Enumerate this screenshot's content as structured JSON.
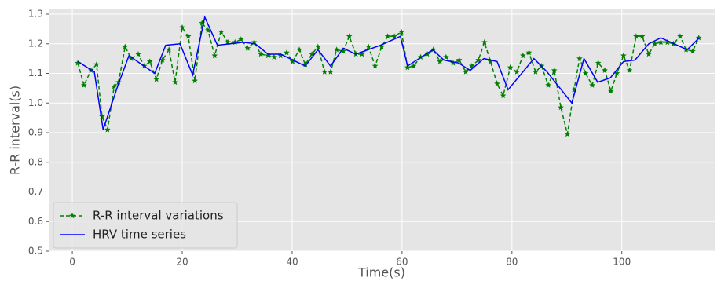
{
  "chart_data": {
    "type": "line",
    "xlabel": "Time(s)",
    "ylabel": "R-R interval(s)",
    "xlim": [
      -4.3,
      116.9
    ],
    "ylim": [
      0.5,
      1.3
    ],
    "xticks": [
      0,
      20,
      40,
      60,
      80,
      100
    ],
    "yticks": [
      0.5,
      0.6,
      0.7,
      0.8,
      0.9,
      {
        "value": 1.0,
        "label": "1.0"
      },
      1.1,
      1.2,
      1.3
    ],
    "grid": true,
    "legend": "lower left",
    "series": [
      {
        "name": "R-R interval variations",
        "color": "#008000",
        "line_style": "dashed",
        "marker": "star",
        "x": [
          1.0,
          2.1,
          3.4,
          4.4,
          5.4,
          6.4,
          7.6,
          8.4,
          9.6,
          10.7,
          12,
          13.1,
          14.1,
          15.3,
          16.4,
          17.6,
          18.7,
          20,
          21.1,
          22.3,
          23.6,
          24.7,
          25.9,
          27.1,
          28.3,
          29.6,
          30.7,
          31.9,
          33.1,
          34.3,
          35.6,
          36.7,
          37.9,
          39,
          40.1,
          41.3,
          42.4,
          43.6,
          44.7,
          45.9,
          47,
          48.1,
          49.3,
          50.4,
          51.6,
          52.7,
          53.9,
          55.1,
          56.3,
          57.4,
          58.6,
          59.9,
          61,
          62.1,
          63.4,
          64.6,
          65.7,
          66.9,
          68,
          69.3,
          70.4,
          71.6,
          72.7,
          73.9,
          75,
          76.1,
          77.3,
          78.4,
          79.7,
          80.9,
          82,
          83.1,
          84.3,
          85.4,
          86.6,
          87.7,
          88.9,
          90.1,
          91.3,
          92.3,
          93.4,
          94.6,
          95.7,
          96.9,
          98,
          99.1,
          100.3,
          101.4,
          102.6,
          103.7,
          104.9,
          106,
          107.1,
          108.3,
          109.4,
          110.6,
          111.7,
          112.9,
          114
        ],
        "values": [
          1.135,
          1.06,
          1.11,
          1.13,
          0.955,
          0.91,
          1.055,
          1.07,
          1.19,
          1.15,
          1.165,
          1.125,
          1.14,
          1.08,
          1.145,
          1.18,
          1.07,
          1.255,
          1.225,
          1.075,
          1.27,
          1.245,
          1.16,
          1.24,
          1.205,
          1.205,
          1.215,
          1.185,
          1.205,
          1.165,
          1.16,
          1.155,
          1.16,
          1.17,
          1.14,
          1.18,
          1.13,
          1.165,
          1.19,
          1.105,
          1.105,
          1.18,
          1.175,
          1.225,
          1.165,
          1.165,
          1.19,
          1.125,
          1.19,
          1.225,
          1.225,
          1.24,
          1.12,
          1.125,
          1.155,
          1.165,
          1.18,
          1.14,
          1.155,
          1.135,
          1.145,
          1.105,
          1.125,
          1.145,
          1.205,
          1.14,
          1.065,
          1.025,
          1.12,
          1.105,
          1.16,
          1.17,
          1.105,
          1.125,
          1.06,
          1.11,
          0.985,
          0.895,
          1.045,
          1.15,
          1.1,
          1.06,
          1.135,
          1.11,
          1.04,
          1.1,
          1.16,
          1.11,
          1.225,
          1.225,
          1.165,
          1.2,
          1.205,
          1.205,
          1.2,
          1.225,
          1.18,
          1.175,
          1.22
        ]
      },
      {
        "name": "HRV time series",
        "color": "#0000ff",
        "line_style": "solid",
        "x": [
          1,
          4,
          5.6,
          8.3,
          10.3,
          15,
          17,
          19.6,
          21.9,
          24.1,
          26.4,
          31.1,
          33.3,
          35.6,
          37.9,
          42.4,
          44.7,
          47,
          49.3,
          51.6,
          56.1,
          59.7,
          61,
          65.6,
          67.6,
          70.3,
          72.4,
          74.9,
          77.3,
          79.3,
          84,
          86.4,
          90.9,
          93.1,
          95.6,
          97.9,
          100.3,
          102.4,
          104.9,
          107.1,
          111.9,
          114.1
        ],
        "values": [
          1.14,
          1.105,
          0.91,
          1.06,
          1.16,
          1.1,
          1.195,
          1.2,
          1.095,
          1.29,
          1.195,
          1.205,
          1.2,
          1.165,
          1.165,
          1.125,
          1.18,
          1.125,
          1.185,
          1.165,
          1.195,
          1.225,
          1.125,
          1.18,
          1.145,
          1.135,
          1.11,
          1.15,
          1.14,
          1.045,
          1.15,
          1.105,
          1.0,
          1.15,
          1.07,
          1.085,
          1.14,
          1.145,
          1.2,
          1.22,
          1.18,
          1.22
        ]
      }
    ]
  }
}
